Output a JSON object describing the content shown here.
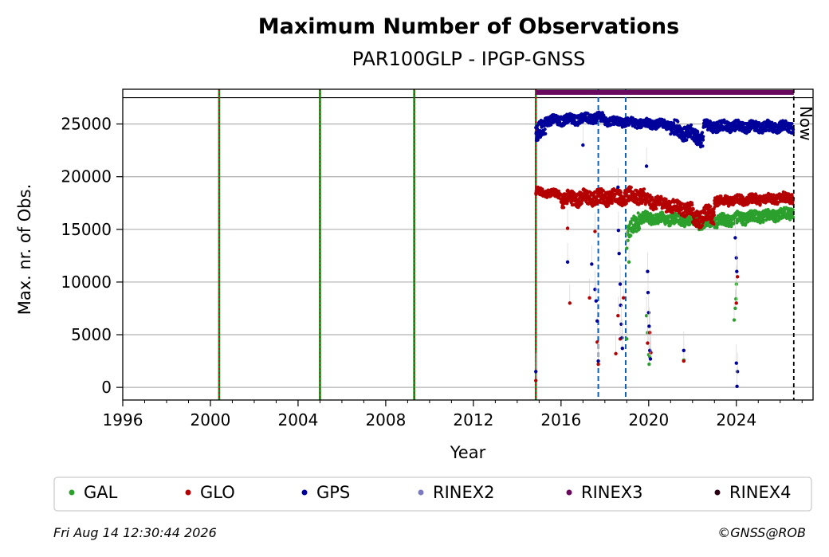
{
  "chart_data": {
    "type": "scatter",
    "title": "Maximum Number of Observations",
    "subtitle": "PAR100GLP - IPGP-GNSS",
    "xlabel": "Year",
    "ylabel": "Max. nr. of Obs.",
    "xlim": [
      1996,
      2027.5
    ],
    "ylim": [
      -1200,
      28300
    ],
    "xticks": [
      1996,
      2000,
      2004,
      2008,
      2012,
      2016,
      2020,
      2024
    ],
    "xtick_labels": [
      "1996",
      "2000",
      "2004",
      "2008",
      "2012",
      "2016",
      "2020",
      "2024"
    ],
    "yticks": [
      0,
      5000,
      10000,
      15000,
      20000,
      25000
    ],
    "ytick_labels": [
      "0",
      "5000",
      "10000",
      "15000",
      "20000",
      "25000"
    ],
    "grid": "horizontal",
    "legend_position": "bottom",
    "now_label": "Now",
    "now_year": 2026.62,
    "reference_line_value": 27500,
    "event_lines_green_red": [
      2000.4,
      2005.0,
      2009.3,
      2014.85
    ],
    "event_lines_blue_dashed": [
      2017.7,
      2018.95
    ],
    "rinex3_bar": {
      "from": 2014.85,
      "to": 2026.62,
      "value": 28000,
      "color": "#6a0a5e"
    },
    "series": [
      {
        "name": "GAL",
        "color": "#2ca02c",
        "segments": [
          {
            "from": 2019.0,
            "to": 2019.6,
            "start": 14200,
            "end": 16300,
            "amp": 900
          },
          {
            "from": 2019.6,
            "to": 2022.3,
            "start": 16100,
            "end": 15800,
            "amp": 500
          },
          {
            "from": 2022.3,
            "to": 2026.6,
            "start": 15600,
            "end": 16600,
            "amp": 550
          }
        ],
        "outliers": [
          [
            2019.0,
            13200
          ],
          [
            2019.1,
            11900
          ],
          [
            2019.0,
            4600
          ],
          [
            2019.9,
            6800
          ],
          [
            2019.95,
            5200
          ],
          [
            2020.0,
            3100
          ],
          [
            2020.02,
            2200
          ],
          [
            2020.05,
            2900
          ],
          [
            2021.6,
            2600
          ],
          [
            2023.9,
            6400
          ],
          [
            2023.95,
            7500
          ],
          [
            2024.0,
            9800
          ],
          [
            2023.98,
            8400
          ]
        ]
      },
      {
        "name": "GLO",
        "color": "#b40000",
        "segments": [
          {
            "from": 2014.85,
            "to": 2016.0,
            "start": 18600,
            "end": 18300,
            "amp": 350
          },
          {
            "from": 2016.0,
            "to": 2019.8,
            "start": 17900,
            "end": 18200,
            "amp": 700
          },
          {
            "from": 2019.8,
            "to": 2022.0,
            "start": 17800,
            "end": 16800,
            "amp": 600
          },
          {
            "from": 2022.0,
            "to": 2023.0,
            "start": 16000,
            "end": 16500,
            "amp": 800
          },
          {
            "from": 2023.0,
            "to": 2026.6,
            "start": 17700,
            "end": 18000,
            "amp": 450
          }
        ],
        "outliers": [
          [
            2014.85,
            650
          ],
          [
            2016.3,
            15100
          ],
          [
            2016.4,
            8000
          ],
          [
            2017.3,
            8500
          ],
          [
            2017.55,
            14800
          ],
          [
            2017.65,
            4300
          ],
          [
            2017.7,
            2200
          ],
          [
            2018.5,
            3200
          ],
          [
            2018.6,
            6800
          ],
          [
            2018.7,
            4600
          ],
          [
            2018.85,
            8500
          ],
          [
            2019.95,
            4200
          ],
          [
            2020.05,
            5200
          ],
          [
            2020.1,
            3300
          ],
          [
            2021.6,
            2500
          ],
          [
            2024.0,
            8000
          ],
          [
            2024.05,
            10500
          ]
        ]
      },
      {
        "name": "GPS",
        "color": "#00009b",
        "segments": [
          {
            "from": 2014.85,
            "to": 2015.3,
            "start": 23800,
            "end": 25000,
            "amp": 800
          },
          {
            "from": 2015.3,
            "to": 2018.0,
            "start": 25300,
            "end": 25600,
            "amp": 450
          },
          {
            "from": 2018.0,
            "to": 2021.0,
            "start": 25300,
            "end": 24900,
            "amp": 400
          },
          {
            "from": 2021.0,
            "to": 2022.5,
            "start": 24700,
            "end": 23600,
            "amp": 700
          },
          {
            "from": 2022.5,
            "to": 2026.6,
            "start": 24800,
            "end": 24700,
            "amp": 500
          }
        ],
        "outliers": [
          [
            2014.85,
            1500
          ],
          [
            2016.3,
            11900
          ],
          [
            2017.0,
            23000
          ],
          [
            2017.4,
            11700
          ],
          [
            2017.55,
            9300
          ],
          [
            2017.6,
            8200
          ],
          [
            2017.65,
            6300
          ],
          [
            2017.7,
            2500
          ],
          [
            2018.6,
            19000
          ],
          [
            2018.62,
            14900
          ],
          [
            2018.65,
            12700
          ],
          [
            2018.7,
            9800
          ],
          [
            2018.72,
            7800
          ],
          [
            2018.75,
            6000
          ],
          [
            2018.78,
            4700
          ],
          [
            2018.8,
            3700
          ],
          [
            2019.9,
            21000
          ],
          [
            2019.95,
            11000
          ],
          [
            2019.97,
            9000
          ],
          [
            2020.0,
            7100
          ],
          [
            2020.02,
            5800
          ],
          [
            2020.05,
            3500
          ],
          [
            2020.08,
            2700
          ],
          [
            2021.6,
            3500
          ],
          [
            2023.95,
            14200
          ],
          [
            2024.0,
            12300
          ],
          [
            2024.02,
            11000
          ],
          [
            2024.05,
            1500
          ],
          [
            2024.03,
            100
          ],
          [
            2024.0,
            2300
          ]
        ]
      },
      {
        "name": "RINEX2",
        "color": "#7b7bbf"
      },
      {
        "name": "RINEX3",
        "color": "#6a0a5e"
      },
      {
        "name": "RINEX4",
        "color": "#2a0014"
      }
    ]
  },
  "footer": {
    "timestamp": "Fri Aug 14 12:30:44 2026",
    "credit": "©GNSS@ROB"
  }
}
